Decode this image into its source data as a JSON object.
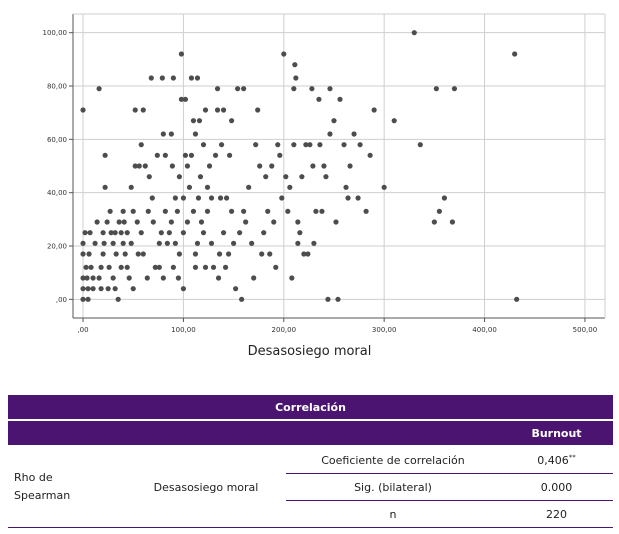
{
  "chart_data": {
    "type": "scatter",
    "xlabel": "Desasosiego moral",
    "xlim": [
      -10,
      520
    ],
    "ylim": [
      -7,
      107
    ],
    "x_ticks": [
      0,
      100,
      200,
      300,
      400,
      500
    ],
    "x_tick_labels": [
      ",00",
      "100,00",
      "200,00",
      "300,00",
      "400,00",
      "500,00"
    ],
    "y_ticks": [
      0,
      20,
      40,
      60,
      80,
      100
    ],
    "y_tick_labels": [
      ",00",
      "20,00",
      "40,00",
      "60,00",
      "80,00",
      "100,00"
    ],
    "grid": true,
    "marker_color": "#4d4d4d",
    "points": [
      [
        0,
        71
      ],
      [
        0,
        21
      ],
      [
        0,
        17
      ],
      [
        0,
        8
      ],
      [
        0,
        4
      ],
      [
        0,
        0
      ],
      [
        2,
        25
      ],
      [
        3,
        12
      ],
      [
        4,
        8
      ],
      [
        5,
        4
      ],
      [
        5,
        0
      ],
      [
        6,
        17
      ],
      [
        7,
        25
      ],
      [
        8,
        12
      ],
      [
        10,
        8
      ],
      [
        10,
        4
      ],
      [
        12,
        21
      ],
      [
        14,
        29
      ],
      [
        16,
        8
      ],
      [
        16,
        79
      ],
      [
        18,
        12
      ],
      [
        18,
        4
      ],
      [
        20,
        17
      ],
      [
        20,
        25
      ],
      [
        21,
        21
      ],
      [
        22,
        42
      ],
      [
        22,
        54
      ],
      [
        24,
        29
      ],
      [
        25,
        4
      ],
      [
        26,
        12
      ],
      [
        27,
        33
      ],
      [
        28,
        25
      ],
      [
        30,
        8
      ],
      [
        30,
        21
      ],
      [
        32,
        4
      ],
      [
        32,
        25
      ],
      [
        33,
        17
      ],
      [
        35,
        0
      ],
      [
        36,
        29
      ],
      [
        38,
        25
      ],
      [
        38,
        12
      ],
      [
        40,
        33
      ],
      [
        40,
        21
      ],
      [
        41,
        29
      ],
      [
        42,
        17
      ],
      [
        44,
        25
      ],
      [
        44,
        12
      ],
      [
        46,
        8
      ],
      [
        48,
        21
      ],
      [
        48,
        42
      ],
      [
        50,
        4
      ],
      [
        50,
        33
      ],
      [
        52,
        50
      ],
      [
        52,
        71
      ],
      [
        54,
        29
      ],
      [
        55,
        17
      ],
      [
        56,
        50
      ],
      [
        58,
        25
      ],
      [
        58,
        58
      ],
      [
        60,
        71
      ],
      [
        60,
        17
      ],
      [
        62,
        50
      ],
      [
        64,
        8
      ],
      [
        65,
        33
      ],
      [
        66,
        46
      ],
      [
        68,
        83
      ],
      [
        69,
        38
      ],
      [
        70,
        29
      ],
      [
        72,
        12
      ],
      [
        74,
        54
      ],
      [
        76,
        21
      ],
      [
        76,
        12
      ],
      [
        78,
        25
      ],
      [
        79,
        83
      ],
      [
        80,
        8
      ],
      [
        80,
        62
      ],
      [
        82,
        33
      ],
      [
        82,
        54
      ],
      [
        84,
        21
      ],
      [
        86,
        25
      ],
      [
        88,
        62
      ],
      [
        88,
        29
      ],
      [
        89,
        50
      ],
      [
        90,
        12
      ],
      [
        90,
        83
      ],
      [
        92,
        21
      ],
      [
        92,
        38
      ],
      [
        94,
        33
      ],
      [
        95,
        8
      ],
      [
        96,
        46
      ],
      [
        96,
        17
      ],
      [
        98,
        92
      ],
      [
        98,
        75
      ],
      [
        100,
        38
      ],
      [
        100,
        4
      ],
      [
        100,
        25
      ],
      [
        102,
        54
      ],
      [
        102,
        75
      ],
      [
        104,
        50
      ],
      [
        104,
        29
      ],
      [
        106,
        42
      ],
      [
        108,
        54
      ],
      [
        108,
        83
      ],
      [
        110,
        33
      ],
      [
        110,
        67
      ],
      [
        112,
        17
      ],
      [
        112,
        62
      ],
      [
        112,
        12
      ],
      [
        114,
        83
      ],
      [
        114,
        21
      ],
      [
        115,
        38
      ],
      [
        116,
        67
      ],
      [
        117,
        46
      ],
      [
        118,
        29
      ],
      [
        120,
        25
      ],
      [
        120,
        58
      ],
      [
        122,
        12
      ],
      [
        122,
        71
      ],
      [
        124,
        42
      ],
      [
        124,
        33
      ],
      [
        126,
        50
      ],
      [
        128,
        21
      ],
      [
        128,
        38
      ],
      [
        130,
        12
      ],
      [
        132,
        54
      ],
      [
        134,
        79
      ],
      [
        134,
        71
      ],
      [
        135,
        8
      ],
      [
        136,
        17
      ],
      [
        137,
        38
      ],
      [
        138,
        58
      ],
      [
        140,
        71
      ],
      [
        140,
        25
      ],
      [
        142,
        12
      ],
      [
        143,
        38
      ],
      [
        145,
        17
      ],
      [
        146,
        54
      ],
      [
        148,
        67
      ],
      [
        148,
        33
      ],
      [
        150,
        21
      ],
      [
        152,
        4
      ],
      [
        154,
        79
      ],
      [
        156,
        25
      ],
      [
        158,
        0
      ],
      [
        160,
        79
      ],
      [
        160,
        33
      ],
      [
        162,
        29
      ],
      [
        165,
        42
      ],
      [
        168,
        21
      ],
      [
        170,
        8
      ],
      [
        172,
        58
      ],
      [
        174,
        71
      ],
      [
        176,
        50
      ],
      [
        178,
        17
      ],
      [
        180,
        25
      ],
      [
        182,
        46
      ],
      [
        184,
        33
      ],
      [
        186,
        17
      ],
      [
        188,
        50
      ],
      [
        190,
        29
      ],
      [
        192,
        12
      ],
      [
        194,
        58
      ],
      [
        196,
        54
      ],
      [
        198,
        38
      ],
      [
        200,
        92
      ],
      [
        202,
        46
      ],
      [
        204,
        33
      ],
      [
        206,
        42
      ],
      [
        208,
        8
      ],
      [
        210,
        79
      ],
      [
        210,
        58
      ],
      [
        211,
        88
      ],
      [
        212,
        83
      ],
      [
        214,
        29
      ],
      [
        214,
        21
      ],
      [
        216,
        25
      ],
      [
        218,
        46
      ],
      [
        220,
        17
      ],
      [
        222,
        58
      ],
      [
        224,
        17
      ],
      [
        226,
        58
      ],
      [
        228,
        79
      ],
      [
        229,
        50
      ],
      [
        230,
        21
      ],
      [
        232,
        33
      ],
      [
        235,
        75
      ],
      [
        236,
        58
      ],
      [
        238,
        33
      ],
      [
        240,
        50
      ],
      [
        242,
        46
      ],
      [
        244,
        0
      ],
      [
        246,
        79
      ],
      [
        246,
        62
      ],
      [
        250,
        67
      ],
      [
        252,
        29
      ],
      [
        254,
        0
      ],
      [
        256,
        75
      ],
      [
        260,
        58
      ],
      [
        262,
        42
      ],
      [
        264,
        38
      ],
      [
        266,
        50
      ],
      [
        270,
        62
      ],
      [
        274,
        38
      ],
      [
        276,
        58
      ],
      [
        282,
        33
      ],
      [
        286,
        54
      ],
      [
        290,
        71
      ],
      [
        300,
        42
      ],
      [
        310,
        67
      ],
      [
        330,
        100
      ],
      [
        336,
        58
      ],
      [
        350,
        29
      ],
      [
        352,
        79
      ],
      [
        355,
        33
      ],
      [
        360,
        38
      ],
      [
        368,
        29
      ],
      [
        370,
        79
      ],
      [
        430,
        92
      ],
      [
        432,
        0
      ]
    ]
  },
  "table": {
    "title": "Correlación",
    "col_header": "Burnout",
    "row_group": "Rho de Spearman",
    "variable": "Desasosiego moral",
    "rows": [
      {
        "label": "Coeficiente de correlación",
        "value": "0,406",
        "mark": "**"
      },
      {
        "label": "Sig. (bilateral)",
        "value": "0.000",
        "mark": ""
      },
      {
        "label": "n",
        "value": "220",
        "mark": ""
      }
    ]
  }
}
